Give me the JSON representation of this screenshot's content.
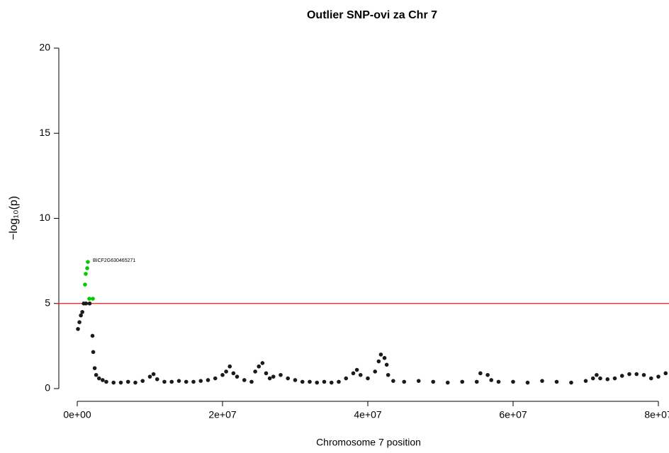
{
  "chart_data": {
    "type": "scatter",
    "title": "Outlier SNP-ovi za Chr 7",
    "xlabel": "Chromosome 7 position",
    "ylabel": "−log₁₀(p)",
    "xlim": [
      0,
      80000000
    ],
    "ylim": [
      0,
      20
    ],
    "xticks": [
      {
        "value": 0,
        "label": "0e+00"
      },
      {
        "value": 20000000,
        "label": "2e+07"
      },
      {
        "value": 40000000,
        "label": "4e+07"
      },
      {
        "value": 60000000,
        "label": "6e+07"
      },
      {
        "value": 80000000,
        "label": "8e+07"
      }
    ],
    "yticks": [
      0,
      5,
      10,
      15,
      20
    ],
    "grid": false,
    "threshold": 5,
    "threshold_color": "#e31a1c",
    "annotations": [
      "BICF2G630465271"
    ],
    "series": [
      {
        "color": "#1a1a1a",
        "x": [
          100000.0,
          300000.0,
          500000.0,
          700000.0,
          900000.0,
          1200000.0,
          1700000.0,
          2100000.0,
          2200000.0,
          2400000.0,
          2600000.0,
          3000000.0,
          3500000.0,
          4000000.0,
          5000000.0,
          6000000.0,
          7000000.0,
          8000000.0,
          9000000.0,
          10000000.0,
          10500000.0,
          11000000.0,
          12000000.0,
          13000000.0,
          14000000.0,
          15000000.0,
          16000000.0,
          17000000.0,
          18000000.0,
          19000000.0,
          20000000.0,
          20500000.0,
          21000000.0,
          21500000.0,
          22000000.0,
          23000000.0,
          24000000.0,
          24500000.0,
          25000000.0,
          25500000.0,
          26000000.0,
          26500000.0,
          27000000.0,
          28000000.0,
          29000000.0,
          30000000.0,
          31000000.0,
          32000000.0,
          33000000.0,
          34000000.0,
          35000000.0,
          36000000.0,
          37000000.0,
          38000000.0,
          38500000.0,
          39000000.0,
          40000000.0,
          41000000.0,
          41500000.0,
          41800000.0,
          42300000.0,
          42600000.0,
          42800000.0,
          43500000.0,
          45000000.0,
          47000000.0,
          49000000.0,
          51000000.0,
          53000000.0,
          55000000.0,
          55500000.0,
          56500000.0,
          57000000.0,
          58000000.0,
          60000000.0,
          62000000.0,
          64000000.0,
          66000000.0,
          68000000.0,
          70000000.0,
          71000000.0,
          71500000.0,
          72000000.0,
          73000000.0,
          74000000.0,
          75000000.0,
          76000000.0,
          77000000.0,
          78000000.0,
          79000000.0,
          80000000.0,
          81000000.0
        ],
        "values": [
          3.5,
          3.9,
          4.3,
          4.5,
          5.0,
          5.0,
          5.0,
          3.1,
          2.15,
          1.2,
          0.8,
          0.6,
          0.5,
          0.4,
          0.35,
          0.35,
          0.4,
          0.35,
          0.45,
          0.7,
          0.85,
          0.55,
          0.4,
          0.4,
          0.45,
          0.4,
          0.4,
          0.45,
          0.5,
          0.6,
          0.8,
          1.0,
          1.3,
          0.9,
          0.7,
          0.5,
          0.4,
          1.0,
          1.3,
          1.5,
          0.9,
          0.6,
          0.7,
          0.8,
          0.6,
          0.5,
          0.4,
          0.4,
          0.35,
          0.4,
          0.35,
          0.4,
          0.6,
          0.9,
          1.1,
          0.8,
          0.6,
          1.0,
          1.6,
          2.0,
          1.8,
          1.4,
          0.8,
          0.45,
          0.4,
          0.45,
          0.4,
          0.35,
          0.4,
          0.4,
          0.9,
          0.8,
          0.5,
          0.4,
          0.4,
          0.35,
          0.45,
          0.4,
          0.35,
          0.45,
          0.6,
          0.8,
          0.6,
          0.55,
          0.6,
          0.75,
          0.85,
          0.85,
          0.8,
          0.6,
          0.7,
          0.9
        ]
      },
      {
        "color": "#00cc00",
        "x": [
          1070000.0,
          1170000.0,
          1370000.0,
          1460000.0,
          1660000.0,
          2150000.0
        ],
        "values": [
          6.11,
          6.74,
          7.07,
          7.44,
          5.28,
          5.28
        ]
      }
    ]
  }
}
